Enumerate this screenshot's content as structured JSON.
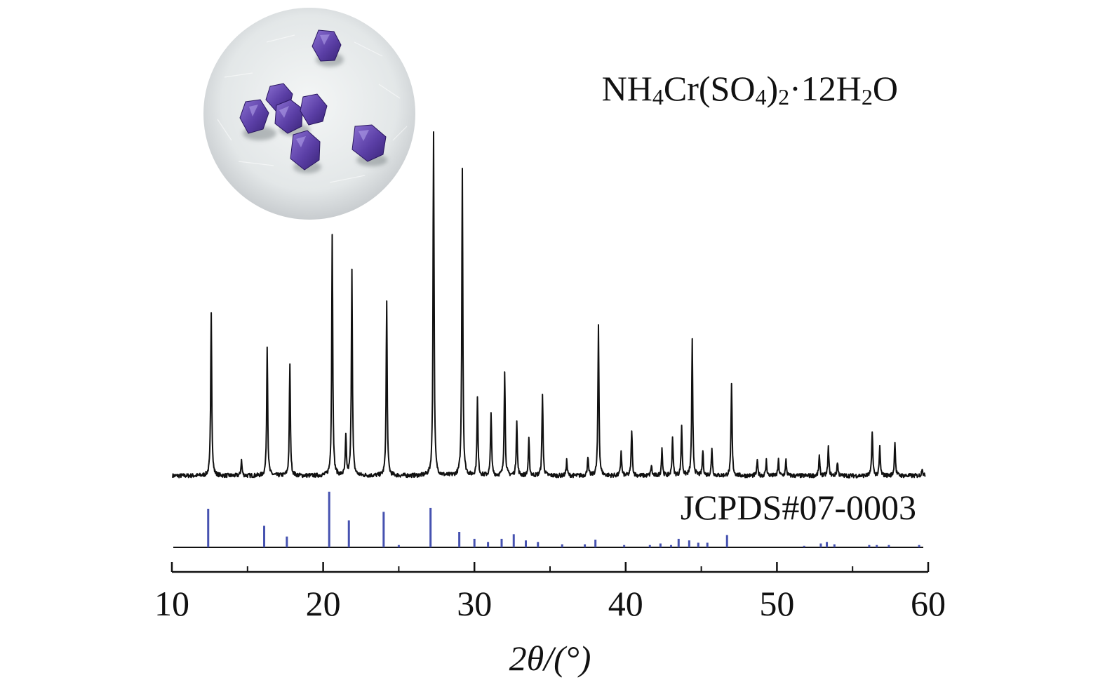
{
  "chart_data": {
    "type": "line",
    "xlabel": "2θ/(°)",
    "ylabel": "",
    "title": "",
    "xlim": [
      10,
      60
    ],
    "xticks": [
      10,
      20,
      30,
      40,
      50,
      60
    ],
    "grid": false,
    "series": [
      {
        "name": "NH4Cr(SO4)2·12H2O",
        "name_parts": {
          "p1": "NH",
          "s1": "4",
          "p2": "Cr(SO",
          "s2": "4",
          "p3": ")",
          "s3": "2",
          "p4": "·12H",
          "s4": "2",
          "p5": "O"
        },
        "color": "#111111",
        "kind": "diffractogram",
        "baseline_intensity": 0,
        "peaks": [
          {
            "x": 12.6,
            "y": 235
          },
          {
            "x": 14.6,
            "y": 22
          },
          {
            "x": 16.3,
            "y": 186
          },
          {
            "x": 17.8,
            "y": 160
          },
          {
            "x": 20.6,
            "y": 345
          },
          {
            "x": 21.5,
            "y": 55
          },
          {
            "x": 21.9,
            "y": 295
          },
          {
            "x": 24.2,
            "y": 248
          },
          {
            "x": 27.3,
            "y": 490
          },
          {
            "x": 29.2,
            "y": 440
          },
          {
            "x": 30.2,
            "y": 110
          },
          {
            "x": 31.1,
            "y": 92
          },
          {
            "x": 32.0,
            "y": 150
          },
          {
            "x": 32.8,
            "y": 80
          },
          {
            "x": 33.6,
            "y": 52
          },
          {
            "x": 34.5,
            "y": 118
          },
          {
            "x": 36.1,
            "y": 22
          },
          {
            "x": 37.5,
            "y": 28
          },
          {
            "x": 38.2,
            "y": 215
          },
          {
            "x": 39.7,
            "y": 35
          },
          {
            "x": 40.4,
            "y": 66
          },
          {
            "x": 41.7,
            "y": 15
          },
          {
            "x": 42.4,
            "y": 40
          },
          {
            "x": 43.1,
            "y": 56
          },
          {
            "x": 43.7,
            "y": 71
          },
          {
            "x": 44.4,
            "y": 192
          },
          {
            "x": 45.1,
            "y": 36
          },
          {
            "x": 45.7,
            "y": 40
          },
          {
            "x": 47.0,
            "y": 130
          },
          {
            "x": 48.7,
            "y": 22
          },
          {
            "x": 49.3,
            "y": 22
          },
          {
            "x": 50.1,
            "y": 22
          },
          {
            "x": 50.6,
            "y": 22
          },
          {
            "x": 52.8,
            "y": 28
          },
          {
            "x": 53.4,
            "y": 41
          },
          {
            "x": 54.0,
            "y": 20
          },
          {
            "x": 56.3,
            "y": 65
          },
          {
            "x": 56.8,
            "y": 41
          },
          {
            "x": 57.8,
            "y": 50
          },
          {
            "x": 59.6,
            "y": 12
          }
        ]
      },
      {
        "name": "JCPDS#07-0003",
        "color": "#4652b0",
        "kind": "reference-sticks",
        "sticks": [
          {
            "x": 12.4,
            "y": 50
          },
          {
            "x": 16.1,
            "y": 28
          },
          {
            "x": 17.6,
            "y": 14
          },
          {
            "x": 20.4,
            "y": 72
          },
          {
            "x": 21.7,
            "y": 35
          },
          {
            "x": 24.0,
            "y": 46
          },
          {
            "x": 25.0,
            "y": 3
          },
          {
            "x": 27.1,
            "y": 51
          },
          {
            "x": 29.0,
            "y": 20
          },
          {
            "x": 30.0,
            "y": 11
          },
          {
            "x": 30.9,
            "y": 7
          },
          {
            "x": 31.8,
            "y": 11
          },
          {
            "x": 32.6,
            "y": 17
          },
          {
            "x": 33.4,
            "y": 9
          },
          {
            "x": 34.2,
            "y": 7
          },
          {
            "x": 35.8,
            "y": 4
          },
          {
            "x": 37.3,
            "y": 4
          },
          {
            "x": 38.0,
            "y": 10
          },
          {
            "x": 39.9,
            "y": 3
          },
          {
            "x": 41.6,
            "y": 3
          },
          {
            "x": 42.3,
            "y": 5
          },
          {
            "x": 43.0,
            "y": 3
          },
          {
            "x": 43.5,
            "y": 11
          },
          {
            "x": 44.2,
            "y": 9
          },
          {
            "x": 44.8,
            "y": 6
          },
          {
            "x": 45.4,
            "y": 6
          },
          {
            "x": 46.7,
            "y": 16
          },
          {
            "x": 51.8,
            "y": 2
          },
          {
            "x": 52.9,
            "y": 5
          },
          {
            "x": 53.3,
            "y": 7
          },
          {
            "x": 53.8,
            "y": 4
          },
          {
            "x": 56.1,
            "y": 3
          },
          {
            "x": 56.6,
            "y": 3
          },
          {
            "x": 57.4,
            "y": 3
          },
          {
            "x": 59.4,
            "y": 3
          }
        ]
      }
    ]
  }
}
